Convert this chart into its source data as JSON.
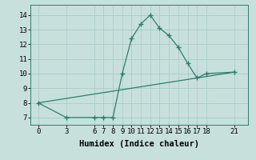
{
  "line1_x": [
    0,
    3,
    6,
    7,
    8,
    9,
    10,
    11,
    12,
    13,
    14,
    15,
    16,
    17,
    18,
    21
  ],
  "line1_y": [
    8,
    7,
    7,
    7,
    7,
    10,
    12.4,
    13.4,
    14,
    13.1,
    12.6,
    11.8,
    10.7,
    9.7,
    10,
    10.1
  ],
  "line2_x": [
    0,
    21
  ],
  "line2_y": [
    8,
    10.1
  ],
  "line_color": "#2e7d6e",
  "bg_color": "#c8e0dc",
  "grid_color": "#aaccc8",
  "xlabel": "Humidex (Indice chaleur)",
  "xticks": [
    0,
    3,
    6,
    7,
    8,
    9,
    10,
    11,
    12,
    13,
    14,
    15,
    16,
    17,
    18,
    21
  ],
  "yticks": [
    7,
    8,
    9,
    10,
    11,
    12,
    13,
    14
  ],
  "xlim": [
    -0.8,
    22.5
  ],
  "ylim": [
    6.5,
    14.7
  ],
  "xlabel_fontsize": 7.5,
  "tick_fontsize": 6.5
}
